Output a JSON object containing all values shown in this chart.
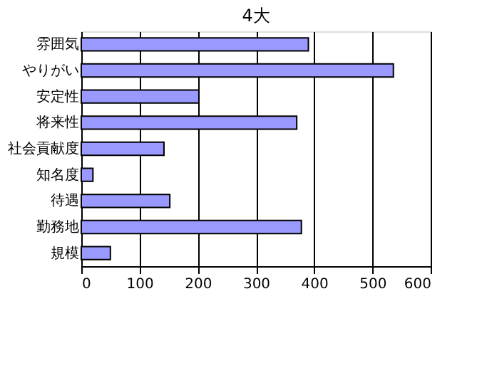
{
  "chart_data": {
    "type": "bar",
    "orientation": "horizontal",
    "title": "4大",
    "categories": [
      "雰囲気",
      "やりがい",
      "安定性",
      "将来性",
      "社会貢献度",
      "知名度",
      "待遇",
      "勤務地",
      "規模"
    ],
    "values": [
      390,
      536,
      202,
      370,
      142,
      20,
      152,
      378,
      50
    ],
    "color": "#9999ff",
    "xlim": [
      0,
      600
    ],
    "xticks": [
      0,
      100,
      200,
      300,
      400,
      500,
      600
    ],
    "grid": "x"
  }
}
